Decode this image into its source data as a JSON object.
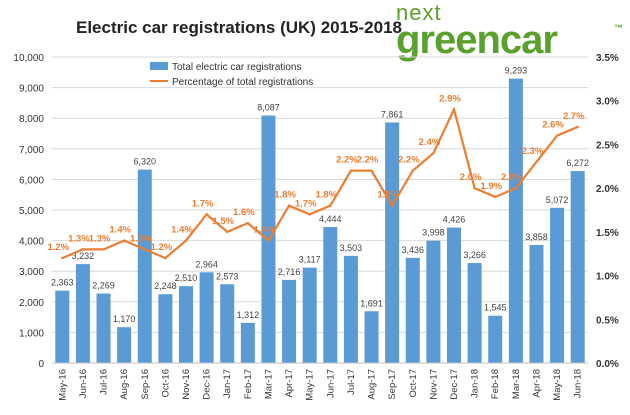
{
  "logo": {
    "line1": "next",
    "line2": "greencar",
    "tm": "™"
  },
  "chart_data": {
    "type": "bar+line",
    "title": "Electric car registrations (UK) 2015-2018",
    "categories": [
      "May-16",
      "Jun-16",
      "Jul-16",
      "Aug-16",
      "Sep-16",
      "Oct-16",
      "Nov-16",
      "Dec-16",
      "Jan-17",
      "Feb-17",
      "Mar-17",
      "Apr-17",
      "May-17",
      "Jun-17",
      "Jul-17",
      "Aug-17",
      "Sep-17",
      "Oct-17",
      "Nov-17",
      "Dec-17",
      "Jan-18",
      "Feb-18",
      "Mar-18",
      "Apr-18",
      "May-18",
      "Jun-18"
    ],
    "series": [
      {
        "name": "Total electric car registrations",
        "type": "bar",
        "axis": "left",
        "color": "#5b9bd5",
        "values": [
          2363,
          3232,
          2269,
          1170,
          6320,
          2248,
          2510,
          2964,
          2573,
          1312,
          8087,
          2716,
          3117,
          4444,
          3503,
          1691,
          7861,
          3436,
          3998,
          4426,
          3266,
          1545,
          9293,
          3858,
          5072,
          6272
        ]
      },
      {
        "name": "Percentage of total registrations",
        "type": "line",
        "axis": "right",
        "color": "#ed7d31",
        "values": [
          1.2,
          1.3,
          1.3,
          1.4,
          1.3,
          1.2,
          1.4,
          1.7,
          1.5,
          1.6,
          1.4,
          1.8,
          1.7,
          1.8,
          2.2,
          2.2,
          1.8,
          2.2,
          2.4,
          2.9,
          2.0,
          1.9,
          2.0,
          2.3,
          2.6,
          2.7
        ]
      }
    ],
    "y_left": {
      "range": [
        0,
        10000
      ],
      "ticks": [
        "0",
        "1,000",
        "2,000",
        "3,000",
        "4,000",
        "5,000",
        "6,000",
        "7,000",
        "8,000",
        "9,000",
        "10,000"
      ]
    },
    "y_right": {
      "range": [
        0,
        3.5
      ],
      "ticks": [
        "0.0%",
        "0.5%",
        "1.0%",
        "1.5%",
        "2.0%",
        "2.5%",
        "3.0%",
        "3.5%"
      ]
    },
    "grid": true,
    "legend": "top-left"
  }
}
